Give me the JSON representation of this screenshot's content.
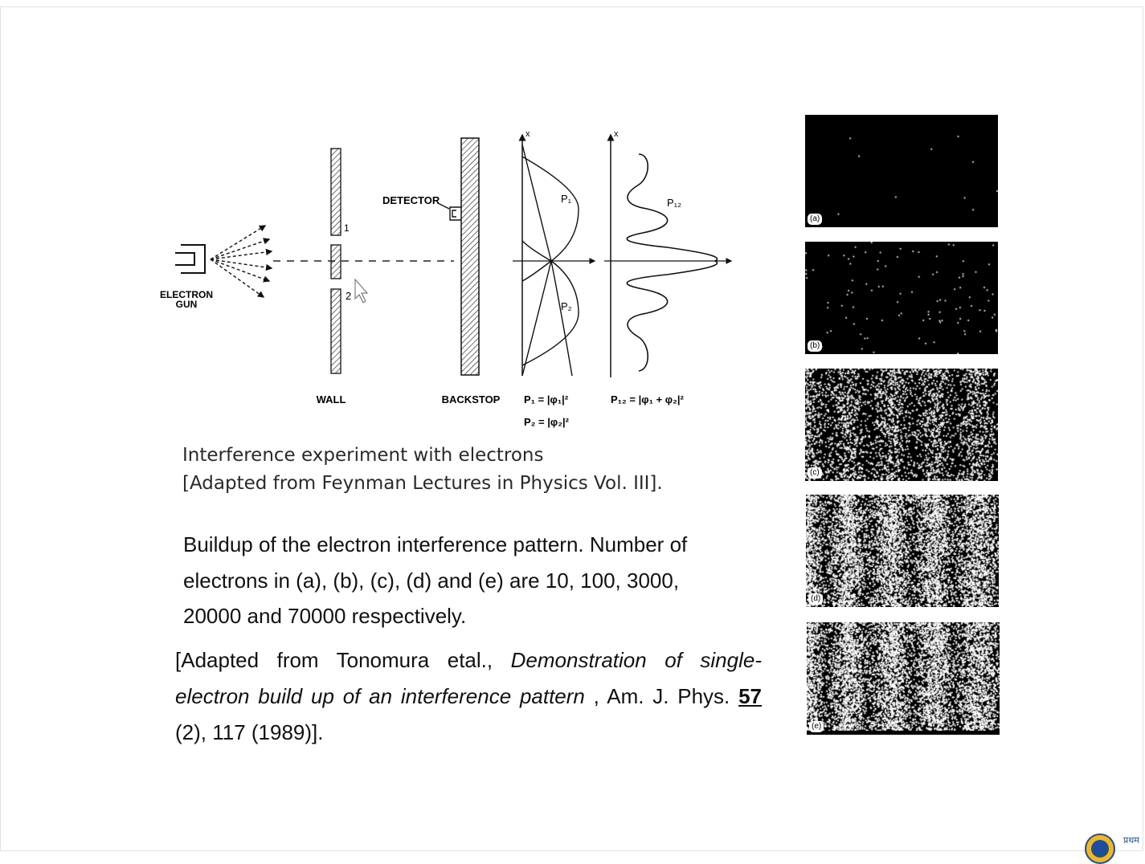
{
  "diagram": {
    "labels": {
      "electron_gun": [
        "ELECTRON",
        "GUN"
      ],
      "slit_1": "1",
      "slit_2": "2",
      "detector": "DETECTOR",
      "wall": "WALL",
      "backstop": "BACKSTOP",
      "axis_x": "x",
      "p1": "P₁",
      "p2": "P₂",
      "p12": "P₁₂",
      "formula_p1": "P₁ = |φ₁|²",
      "formula_p2": "P₂ = |φ₂|²",
      "formula_p12": "P₁₂ = |φ₁ + φ₂|²"
    }
  },
  "caption": {
    "line1": "Interference experiment with electrons",
    "line2": "[Adapted from Feynman Lectures in Physics Vol. III]."
  },
  "buildup": {
    "line1": "Buildup of the electron interference pattern. Number of",
    "line2": "electrons in (a), (b), (c), (d) and (e) are 10, 100, 3000,",
    "line3": "20000 and 70000 respectively."
  },
  "reference": {
    "prefix": "[Adapted from  Tonomura etal., ",
    "title": "Demonstration of single-electron build up of an interference pattern",
    "mid": " , Am. J. Phys. ",
    "volume": "57",
    "suffix": " (2), 117 (1989)]."
  },
  "panels": [
    {
      "label": "(a)",
      "electrons": 10
    },
    {
      "label": "(b)",
      "electrons": 100
    },
    {
      "label": "(c)",
      "electrons": 3000
    },
    {
      "label": "(d)",
      "electrons": 20000
    },
    {
      "label": "(e)",
      "electrons": 70000
    }
  ],
  "logo": {
    "text": "प्रथम"
  }
}
